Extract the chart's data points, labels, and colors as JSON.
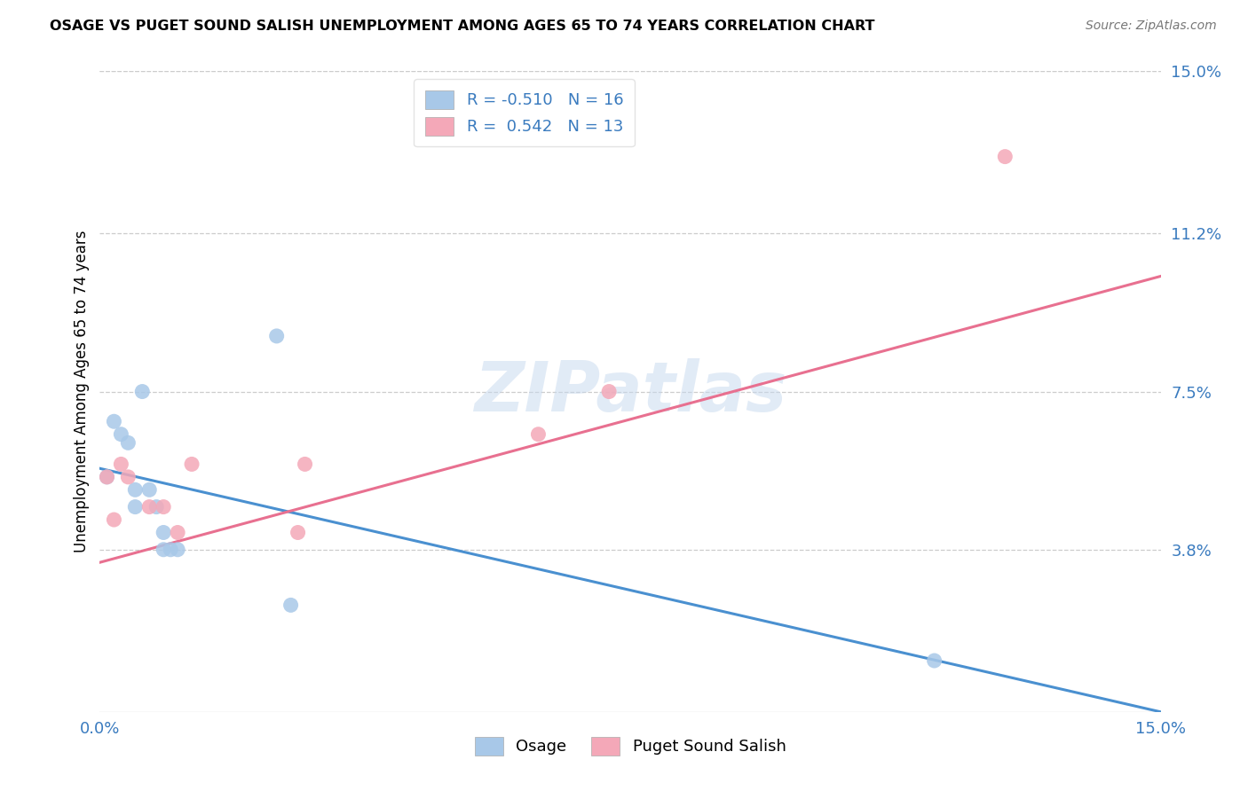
{
  "title": "OSAGE VS PUGET SOUND SALISH UNEMPLOYMENT AMONG AGES 65 TO 74 YEARS CORRELATION CHART",
  "source": "Source: ZipAtlas.com",
  "ylabel": "Unemployment Among Ages 65 to 74 years",
  "xlim": [
    0.0,
    0.15
  ],
  "ylim": [
    0.0,
    0.15
  ],
  "ytick_labels_right": [
    "3.8%",
    "7.5%",
    "11.2%",
    "15.0%"
  ],
  "ytick_positions_right": [
    0.038,
    0.075,
    0.112,
    0.15
  ],
  "grid_color": "#cccccc",
  "background_color": "#ffffff",
  "watermark": "ZIPatlas",
  "osage_color": "#a8c8e8",
  "puget_color": "#f4a8b8",
  "osage_line_color": "#4a90d0",
  "puget_line_color": "#e87090",
  "legend_R_osage": "-0.510",
  "legend_N_osage": "16",
  "legend_R_puget": "0.542",
  "legend_N_puget": "13",
  "osage_x": [
    0.001,
    0.002,
    0.003,
    0.004,
    0.005,
    0.005,
    0.006,
    0.007,
    0.008,
    0.009,
    0.009,
    0.01,
    0.011,
    0.025,
    0.027,
    0.118
  ],
  "osage_y": [
    0.055,
    0.068,
    0.065,
    0.063,
    0.052,
    0.048,
    0.075,
    0.052,
    0.048,
    0.042,
    0.038,
    0.038,
    0.038,
    0.088,
    0.025,
    0.012
  ],
  "puget_x": [
    0.001,
    0.002,
    0.003,
    0.004,
    0.007,
    0.009,
    0.011,
    0.013,
    0.028,
    0.029,
    0.062,
    0.072,
    0.128
  ],
  "puget_y": [
    0.055,
    0.045,
    0.058,
    0.055,
    0.048,
    0.048,
    0.042,
    0.058,
    0.042,
    0.058,
    0.065,
    0.075,
    0.13
  ],
  "osage_line_x0": 0.0,
  "osage_line_y0": 0.057,
  "osage_line_x1": 0.15,
  "osage_line_y1": 0.0,
  "puget_line_x0": 0.0,
  "puget_line_y0": 0.035,
  "puget_line_x1": 0.15,
  "puget_line_y1": 0.102
}
